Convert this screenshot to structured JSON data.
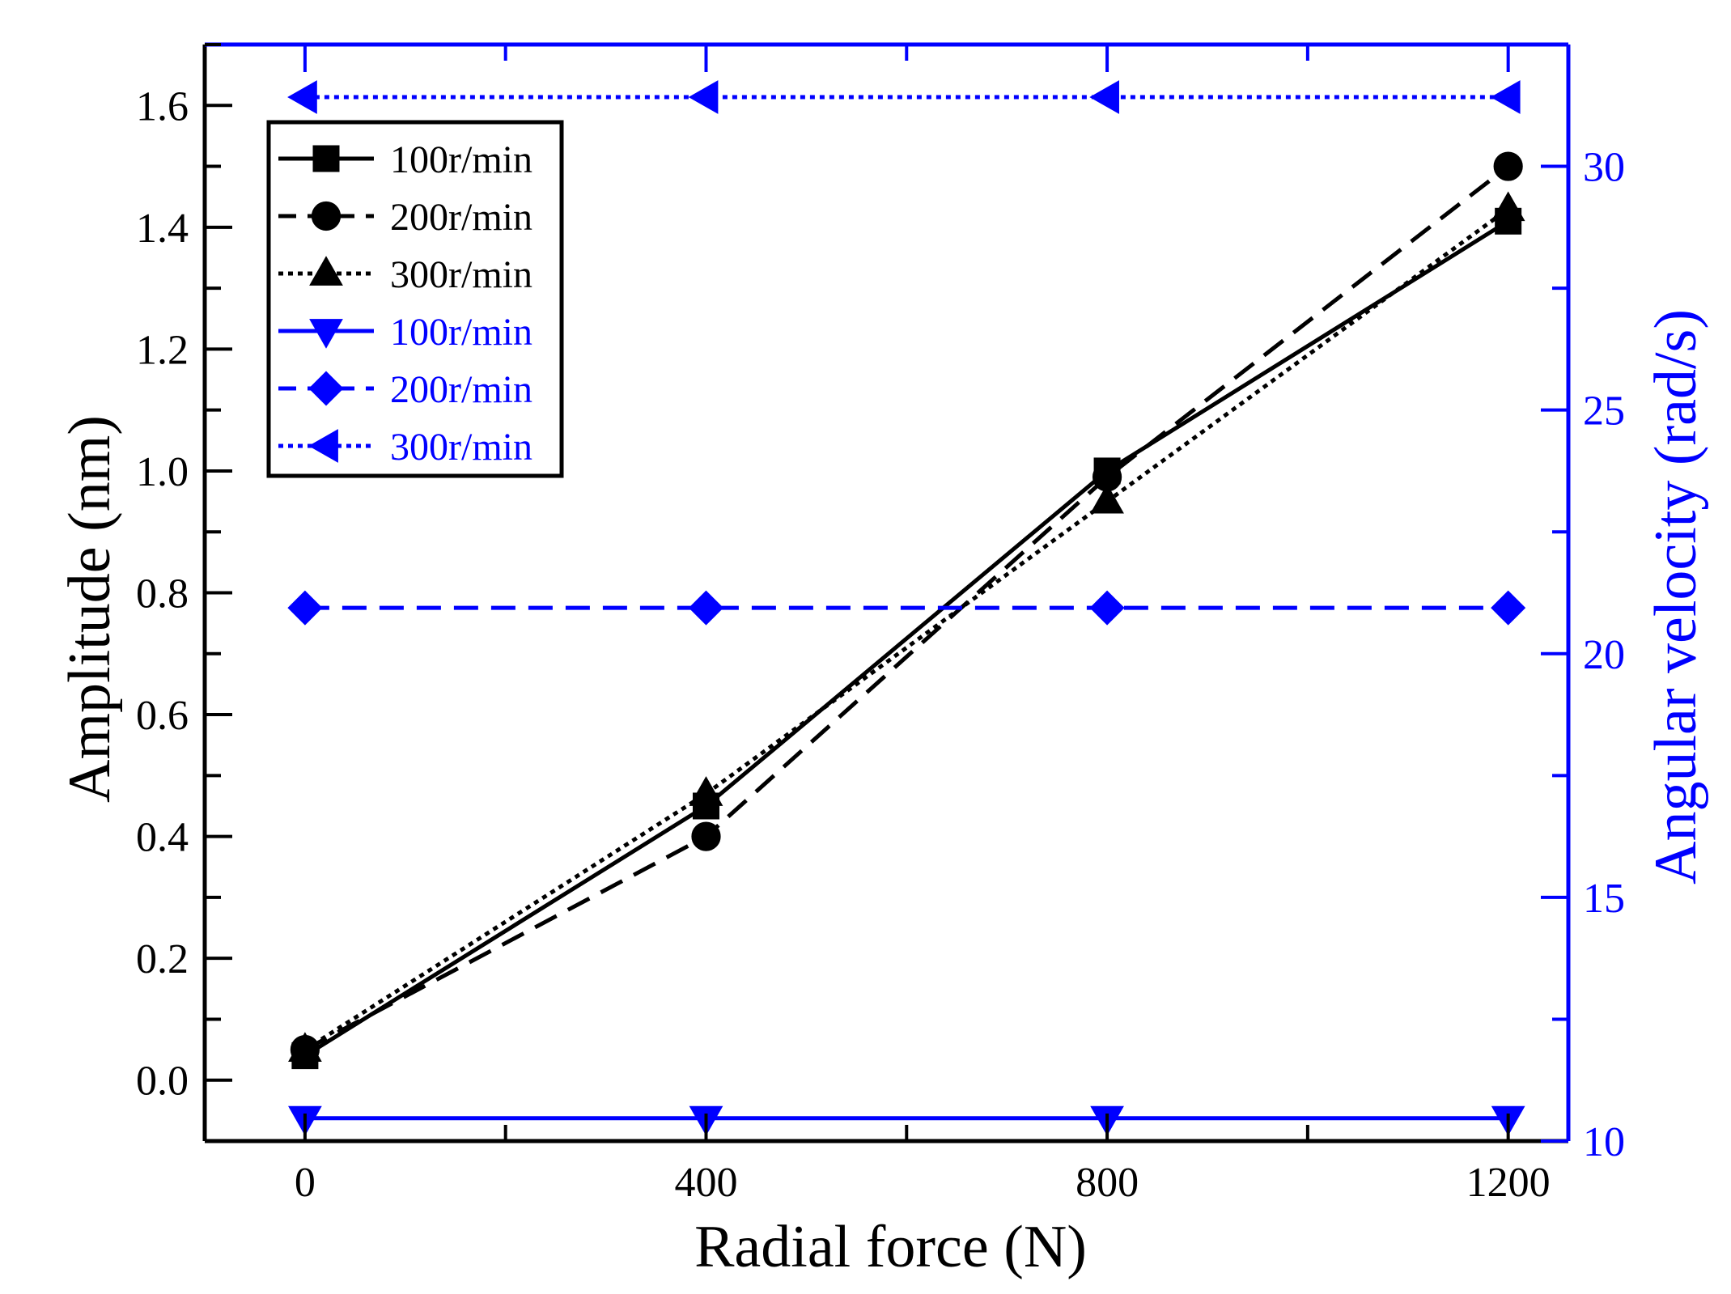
{
  "chart_data": {
    "type": "line",
    "title": "",
    "x": [
      0,
      400,
      800,
      1200
    ],
    "xlabel": "Radial force (N)",
    "xlim": [
      -100,
      1260
    ],
    "xticks": [
      0,
      400,
      800,
      1200
    ],
    "ylabel": "Amplitude (nm)",
    "ylim": [
      -0.1,
      1.7
    ],
    "yticks": [
      0.0,
      0.2,
      0.4,
      0.6,
      0.8,
      1.0,
      1.2,
      1.4,
      1.6
    ],
    "ytick_labels": [
      "0.0",
      "0.2",
      "0.4",
      "0.6",
      "0.8",
      "1.0",
      "1.2",
      "1.4",
      "1.6"
    ],
    "y2label": "Angular velocity (rad/s)",
    "y2lim": [
      10,
      32.5
    ],
    "y2ticks": [
      10,
      15,
      20,
      25,
      30
    ],
    "legend_position": "top-left",
    "colors": {
      "black": "#000000",
      "blue": "#0000ff"
    },
    "series": [
      {
        "name": "100r/min",
        "axis": "left",
        "color": "#000000",
        "dash": "solid",
        "marker": "square",
        "values": [
          0.04,
          0.45,
          1.0,
          1.41
        ]
      },
      {
        "name": "200r/min",
        "axis": "left",
        "color": "#000000",
        "dash": "dashed",
        "marker": "circle",
        "values": [
          0.05,
          0.4,
          0.99,
          1.5
        ]
      },
      {
        "name": "300r/min",
        "axis": "left",
        "color": "#000000",
        "dash": "dotted",
        "marker": "triangle-up",
        "values": [
          0.05,
          0.47,
          0.95,
          1.43
        ]
      },
      {
        "name": "100r/min",
        "axis": "right",
        "color": "#0000ff",
        "dash": "solid",
        "marker": "triangle-down",
        "values": [
          10.47,
          10.47,
          10.47,
          10.47
        ]
      },
      {
        "name": "200r/min",
        "axis": "right",
        "color": "#0000ff",
        "dash": "dashed",
        "marker": "diamond",
        "values": [
          20.94,
          20.94,
          20.94,
          20.94
        ]
      },
      {
        "name": "300r/min",
        "axis": "right",
        "color": "#0000ff",
        "dash": "dotted",
        "marker": "triangle-left",
        "values": [
          31.42,
          31.42,
          31.42,
          31.42
        ]
      }
    ]
  }
}
